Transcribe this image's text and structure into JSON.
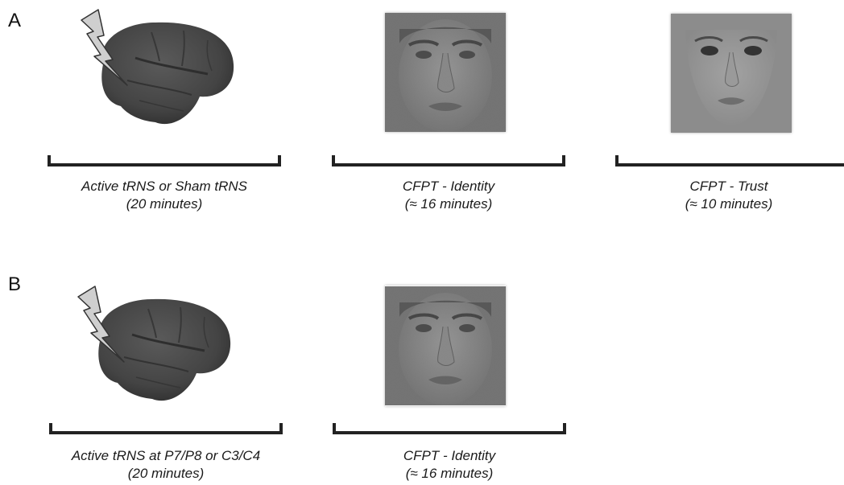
{
  "panels": [
    {
      "letter": "A",
      "stages": [
        {
          "icon": "brain-stimulation-icon",
          "caption_line1": "Active tRNS or Sham tRNS",
          "caption_line2": "(20 minutes)"
        },
        {
          "icon": "male-face-icon",
          "caption_line1": "CFPT - Identity",
          "caption_line2": "(≈ 16 minutes)"
        },
        {
          "icon": "female-face-icon",
          "caption_line1": "CFPT - Trust",
          "caption_line2": "(≈ 10 minutes)"
        }
      ]
    },
    {
      "letter": "B",
      "stages": [
        {
          "icon": "brain-stimulation-icon",
          "caption_line1": "Active tRNS at P7/P8 or C3/C4",
          "caption_line2": "(20 minutes)"
        },
        {
          "icon": "male-face-icon",
          "caption_line1": "CFPT - Identity",
          "caption_line2": "(≈ 16 minutes)"
        }
      ]
    }
  ],
  "colors": {
    "brain": "#4a4a4a",
    "bolt_fill": "#cfcfcf",
    "bracket": "#222222",
    "face_bg": "#8a8a8a"
  }
}
